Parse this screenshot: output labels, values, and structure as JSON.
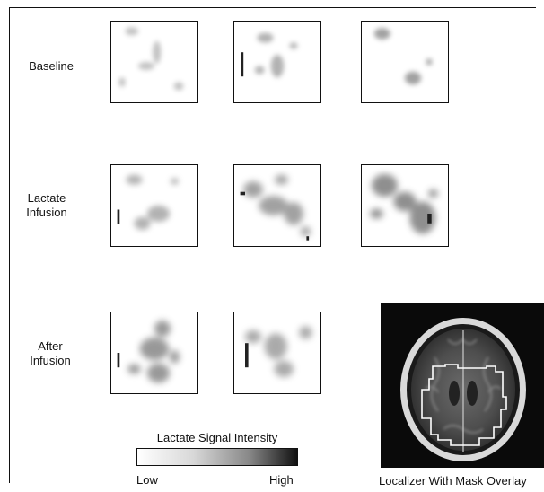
{
  "rows": [
    {
      "label": "Baseline"
    },
    {
      "label_line1": "Lactate",
      "label_line2": "Infusion"
    },
    {
      "label_line1": "After",
      "label_line2": "Infusion"
    }
  ],
  "colorbar": {
    "title": "Lactate Signal Intensity",
    "low": "Low",
    "high": "High"
  },
  "localizer": {
    "caption": "Localizer With Mask Overlay",
    "mask_color": "#ffffff"
  },
  "colors": {
    "background": "#ffffff",
    "border": "#111111",
    "signal": "#555555"
  }
}
